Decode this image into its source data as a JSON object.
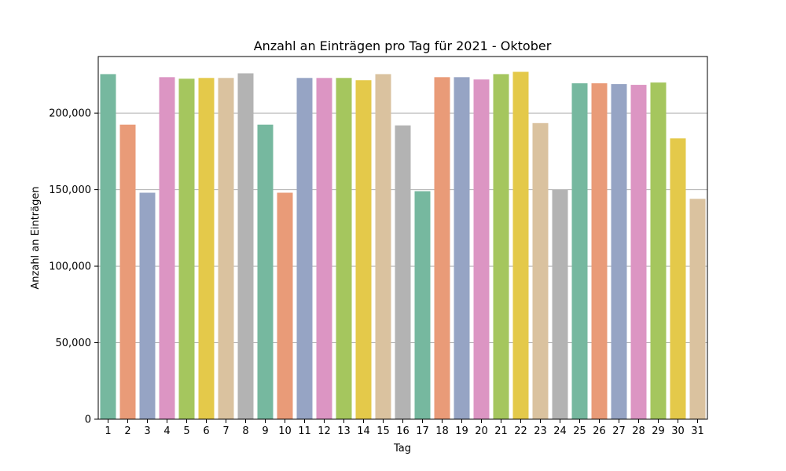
{
  "chart_data": {
    "type": "bar",
    "title": "Anzahl an Einträgen pro Tag für 2021 - Oktober",
    "xlabel": "Tag",
    "ylabel": "Anzahl an Einträgen",
    "ylim": [
      0,
      237000
    ],
    "y_ticks": [
      0,
      50000,
      100000,
      150000,
      200000
    ],
    "y_tick_labels": [
      "0",
      "50,000",
      "100,000",
      "150,000",
      "200,000"
    ],
    "grid": {
      "y": true,
      "x": false
    },
    "categories": [
      "1",
      "2",
      "3",
      "4",
      "5",
      "6",
      "7",
      "8",
      "9",
      "10",
      "11",
      "12",
      "13",
      "14",
      "15",
      "16",
      "17",
      "18",
      "19",
      "20",
      "21",
      "22",
      "23",
      "24",
      "25",
      "26",
      "27",
      "28",
      "29",
      "30",
      "31"
    ],
    "values": [
      225500,
      192500,
      148000,
      223500,
      222500,
      223000,
      223000,
      226000,
      192500,
      148000,
      223000,
      223000,
      223000,
      221500,
      225500,
      192000,
      149000,
      223500,
      223500,
      222000,
      225500,
      227000,
      193500,
      150000,
      219500,
      219500,
      219000,
      218500,
      220000,
      183500,
      144000
    ],
    "palette": [
      "#76b89f",
      "#e99b78",
      "#96a4c4",
      "#dc95c3",
      "#a5c65e",
      "#e4c94a",
      "#dac29f",
      "#b3b3b3"
    ]
  }
}
